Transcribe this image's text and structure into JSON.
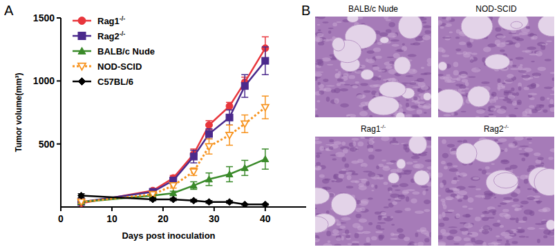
{
  "panel_labels": [
    "A",
    "B"
  ],
  "chart_data": {
    "type": "line",
    "xlabel": "Days post inoculation",
    "ylabel": "Tumor volume(mm³)",
    "x": [
      4,
      18,
      22,
      26,
      29,
      33,
      36,
      40
    ],
    "xlim": [
      0,
      48
    ],
    "xticks": [
      0,
      10,
      20,
      30,
      40
    ],
    "ylim": [
      0,
      1500
    ],
    "yticks": [
      500,
      1000,
      1500
    ],
    "legend": "upper left",
    "series": [
      {
        "name": "Rag1-/-",
        "color": "#e8363c",
        "marker": "circle",
        "line_style": "solid",
        "values": [
          30,
          130,
          230,
          420,
          650,
          800,
          990,
          1260
        ],
        "errors": [
          10,
          15,
          20,
          40,
          35,
          30,
          40,
          90
        ]
      },
      {
        "name": "Rag2-/-",
        "color": "#4b2a8c",
        "marker": "square",
        "line_style": "solid",
        "values": [
          40,
          120,
          210,
          400,
          580,
          710,
          960,
          1160
        ],
        "errors": [
          10,
          15,
          20,
          50,
          40,
          60,
          90,
          110
        ]
      },
      {
        "name": "BALB/c Nude",
        "color": "#3a8a2a",
        "marker": "triangle",
        "line_style": "solid",
        "values": [
          40,
          90,
          110,
          170,
          220,
          260,
          310,
          380
        ],
        "errors": [
          10,
          10,
          15,
          30,
          50,
          60,
          60,
          80
        ]
      },
      {
        "name": "NOD-SCID",
        "color": "#f7931e",
        "marker": "open-triangle-down",
        "line_style": "dotted",
        "values": [
          40,
          100,
          170,
          280,
          480,
          570,
          660,
          790
        ],
        "errors": [
          10,
          15,
          20,
          30,
          60,
          80,
          70,
          90
        ]
      },
      {
        "name": "C57BL/6",
        "color": "#000000",
        "marker": "diamond",
        "line_style": "solid",
        "values": [
          90,
          60,
          60,
          50,
          40,
          40,
          20,
          20
        ],
        "errors": [
          15,
          10,
          10,
          10,
          10,
          10,
          5,
          5
        ]
      }
    ]
  },
  "histology": {
    "images": [
      {
        "label": "BALB/c Nude"
      },
      {
        "label": "NOD-SCID"
      },
      {
        "label": "Rag1-/-"
      },
      {
        "label": "Rag2-/-"
      }
    ]
  }
}
